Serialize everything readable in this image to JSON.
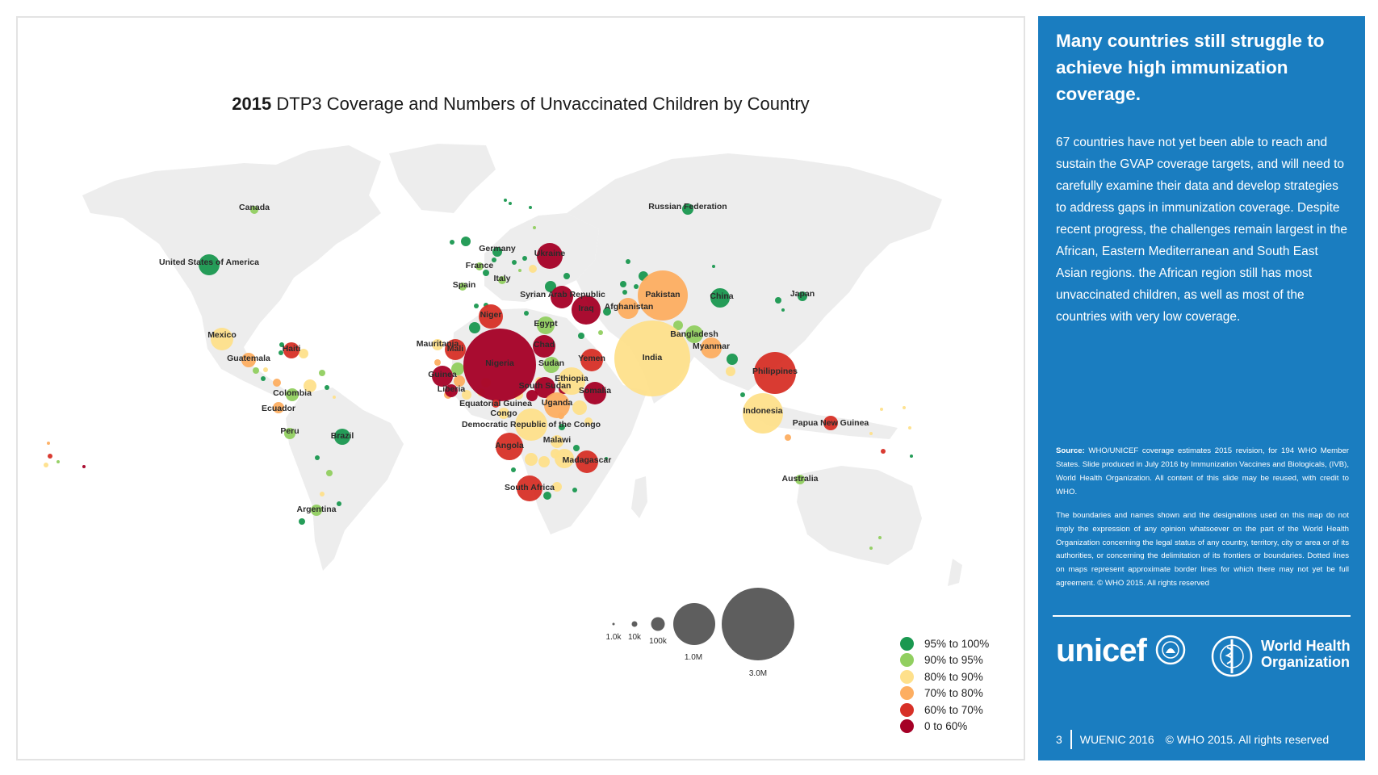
{
  "map": {
    "title_bold": "2015",
    "title_rest": " DTP3 Coverage and Numbers of Unvaccinated Children by Country",
    "country_labels": [
      "Canada",
      "United States of America",
      "Mexico",
      "Guatemala",
      "Haiti",
      "Colombia",
      "Ecuador",
      "Peru",
      "Brazil",
      "Argentina",
      "Russian Federation",
      "Germany",
      "France",
      "Spain",
      "Italy",
      "Ukraine",
      "Syrian Arab Republic",
      "Iraq",
      "Afghanistan",
      "Pakistan",
      "China",
      "Japan",
      "Niger",
      "Egypt",
      "Mauritania",
      "Mali",
      "Guinea",
      "Liberia",
      "Nigeria",
      "Chad",
      "Sudan",
      "South Sudan",
      "Ethiopia",
      "Yemen",
      "Somalia",
      "Equatorial Guinea",
      "Congo",
      "Uganda",
      "Democratic Republic of the Congo",
      "Malawi",
      "Angola",
      "Madagascar",
      "South Africa",
      "Bangladesh",
      "Myanmar",
      "India",
      "Philippines",
      "Indonesia",
      "Papua New Guinea",
      "Australia"
    ],
    "bubble_size_legend": [
      "1.0k",
      "10k",
      "100k",
      "1.0M",
      "3.0M"
    ],
    "coverage_legend": [
      {
        "label": "95% to 100%",
        "color": "#1a9850"
      },
      {
        "label": "90% to 95%",
        "color": "#91cf60"
      },
      {
        "label": "80% to 90%",
        "color": "#fee08b"
      },
      {
        "label": "70% to 80%",
        "color": "#fdae61"
      },
      {
        "label": "60% to 70%",
        "color": "#d73027"
      },
      {
        "label": "0 to 60%",
        "color": "#a50026"
      }
    ]
  },
  "side": {
    "headline": "Many countries still struggle to achieve high immunization coverage.",
    "body": "67 countries have not yet been able to reach and sustain the GVAP coverage targets, and will need to carefully examine their data and develop strategies to address gaps in immunization coverage. Despite recent progress, the challenges remain largest in the African, Eastern Mediterranean and South East Asian regions. the African region still has most unvaccinated children, as well as most of the countries with very low coverage.",
    "source_label": "Source:",
    "source_text": " WHO/UNICEF coverage estimates 2015 revision, for 194 WHO Member States. Slide produced in July 2016 by Immunization Vaccines and Biologicals, (IVB), World Health Organization. All content of this slide may be reused, with credit to WHO.",
    "disclaimer": "The boundaries and names shown and the designations used on this map do not imply the expression of any opinion whatsoever on the part of the World Health Organization concerning the legal status of any country, territory, city or area or of its authorities, or concerning the delimitation of its frontiers or boundaries. Dotted lines on maps represent approximate border lines for which there may not yet be full agreement. © WHO 2015. All rights reserved",
    "unicef_logo": "unicef",
    "who_logo_line1": "World Health",
    "who_logo_line2": "Organization",
    "footer_page": "3",
    "footer_event": "WUENIC 2016",
    "footer_copyright": "© WHO 2015. All rights reserved"
  }
}
